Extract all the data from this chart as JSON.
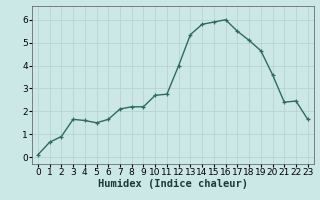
{
  "x": [
    0,
    1,
    2,
    3,
    4,
    5,
    6,
    7,
    8,
    9,
    10,
    11,
    12,
    13,
    14,
    15,
    16,
    17,
    18,
    19,
    20,
    21,
    22,
    23
  ],
  "y": [
    0.1,
    0.65,
    0.9,
    1.65,
    1.6,
    1.5,
    1.65,
    2.1,
    2.2,
    2.2,
    2.7,
    2.75,
    4.0,
    5.35,
    5.8,
    5.9,
    6.0,
    5.5,
    5.1,
    4.65,
    3.6,
    2.4,
    2.45,
    1.65
  ],
  "line_color": "#2e6b5e",
  "marker": "+",
  "bg_color": "#cce8e6",
  "grid_color": "#b8d4d2",
  "xlabel": "Humidex (Indice chaleur)",
  "xlim": [
    -0.5,
    23.5
  ],
  "ylim": [
    -0.3,
    6.6
  ],
  "yticks": [
    0,
    1,
    2,
    3,
    4,
    5,
    6
  ],
  "xticks": [
    0,
    1,
    2,
    3,
    4,
    5,
    6,
    7,
    8,
    9,
    10,
    11,
    12,
    13,
    14,
    15,
    16,
    17,
    18,
    19,
    20,
    21,
    22,
    23
  ],
  "linewidth": 1.0,
  "markersize": 3.5,
  "xlabel_fontsize": 7.5,
  "tick_fontsize": 6.5
}
